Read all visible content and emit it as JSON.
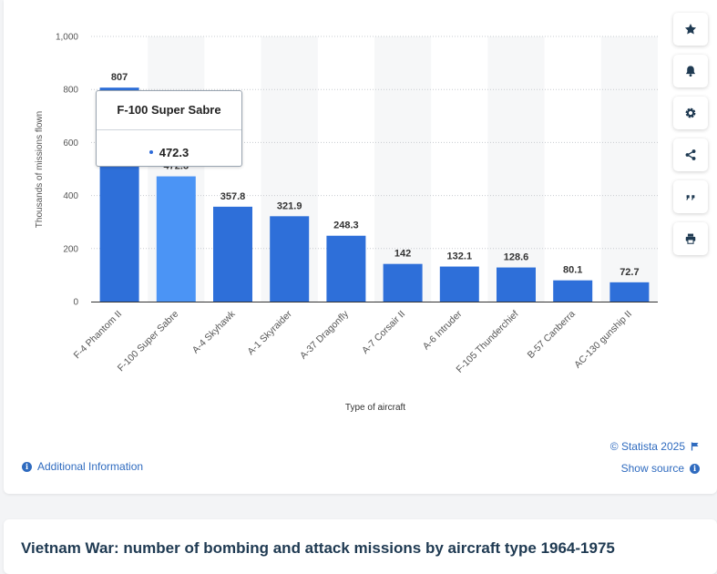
{
  "chart_data": {
    "type": "bar",
    "categories": [
      "F-4 Phantom II",
      "F-100 Super Sabre",
      "A-4 Skyhawk",
      "A-1 Skyraider",
      "A-37 Dragonfly",
      "A-7 Corsair II",
      "A-6 Intruder",
      "F-105 Thunderchief",
      "B-57 Canberra",
      "AC-130 gunship II"
    ],
    "values": [
      807,
      472.3,
      357.8,
      321.9,
      248.3,
      142,
      132.1,
      128.6,
      80.1,
      72.7
    ],
    "value_labels": [
      "807",
      "472.3",
      "357.8",
      "321.9",
      "248.3",
      "142",
      "132.1",
      "128.6",
      "80.1",
      "72.7"
    ],
    "ylabel": "Thousands of missions flown",
    "xlabel": "Type of aircraft",
    "ylim": [
      0,
      1000
    ],
    "yticks": [
      0,
      200,
      400,
      600,
      800,
      1000
    ],
    "ytick_labels": [
      "0",
      "200",
      "400",
      "600",
      "800",
      "1,000"
    ],
    "grid": true,
    "colors": {
      "bar": "#2e6fd9",
      "highlight": "#4b94f5",
      "grid": "#c8ccd0",
      "axis_text": "#555555",
      "label": "#333333",
      "band": "#f6f7f8"
    },
    "highlight_index": 1
  },
  "tooltip": {
    "title": "F-100 Super Sabre",
    "value": "472.3"
  },
  "toolbar": [
    "star-icon",
    "bell-icon",
    "gear-icon",
    "share-icon",
    "quote-icon",
    "print-icon"
  ],
  "footer": {
    "copyright": "© Statista 2025",
    "show_source": "Show source",
    "additional_info": "Additional Information"
  },
  "page_title": "Vietnam War: number of bombing and attack missions by aircraft type 1964-1975"
}
